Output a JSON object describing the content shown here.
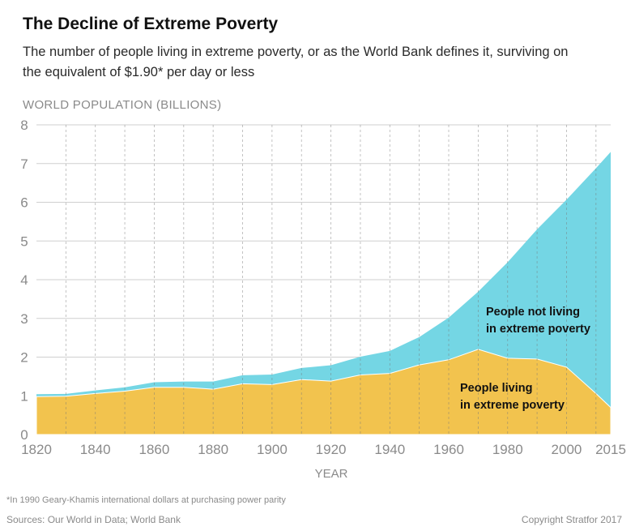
{
  "header": {
    "title": "The Decline of Extreme Poverty",
    "subtitle": "The number of people living in extreme poverty, or as the World Bank defines it, surviving on the equivalent of $1.90* per day or less"
  },
  "chart_data": {
    "type": "area",
    "stacked": true,
    "ylabel": "WORLD POPULATION (BILLIONS)",
    "xlabel": "YEAR",
    "ylim": [
      0,
      8
    ],
    "xlim": [
      1820,
      2015
    ],
    "yticks": [
      0,
      1,
      2,
      3,
      4,
      5,
      6,
      7,
      8
    ],
    "xticks": [
      1820,
      1840,
      1860,
      1880,
      1900,
      1920,
      1940,
      1960,
      1980,
      2000,
      2015
    ],
    "grid": true,
    "x": [
      1820,
      1830,
      1840,
      1850,
      1860,
      1870,
      1880,
      1890,
      1900,
      1910,
      1920,
      1930,
      1940,
      1950,
      1960,
      1970,
      1980,
      1990,
      2000,
      2010,
      2015
    ],
    "series": [
      {
        "name": "People living in extreme poverty",
        "color": "#f2c34e",
        "values": [
          0.98,
          0.99,
          1.06,
          1.12,
          1.22,
          1.22,
          1.17,
          1.31,
          1.29,
          1.42,
          1.38,
          1.54,
          1.58,
          1.8,
          1.93,
          2.2,
          1.97,
          1.95,
          1.74,
          1.06,
          0.7
        ]
      },
      {
        "name": "People not living in extreme poverty",
        "color": "#74d6e4",
        "values": [
          0.06,
          0.06,
          0.08,
          0.1,
          0.13,
          0.15,
          0.2,
          0.22,
          0.26,
          0.3,
          0.41,
          0.47,
          0.58,
          0.72,
          1.09,
          1.49,
          2.48,
          3.35,
          4.33,
          5.82,
          6.6
        ]
      }
    ],
    "annotations": [
      {
        "line1": "People not living",
        "line2": "in extreme poverty"
      },
      {
        "line1": "People living",
        "line2": "in extreme poverty"
      }
    ]
  },
  "footer": {
    "footnote": "*In 1990 Geary-Khamis international dollars at purchasing power parity",
    "sources": "Sources: Our World in Data; World Bank",
    "copyright": "Copyright Stratfor 2017"
  }
}
